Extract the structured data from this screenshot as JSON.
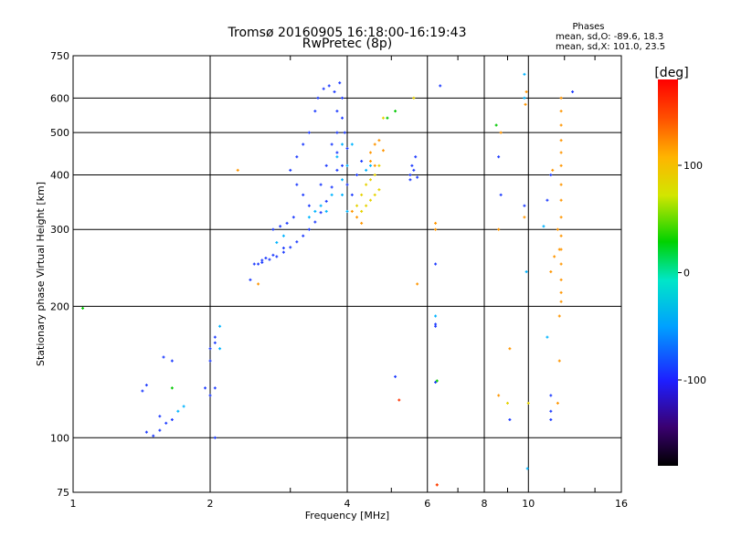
{
  "chart_data": {
    "type": "scatter",
    "title": "Tromsø 20160905 16:18:00-16:19:43",
    "subtitle": "RwPretec (8p)",
    "xlabel": "Frequency [MHz]",
    "ylabel": "Stationary phase Virtual Height [km]",
    "xscale": "log",
    "yscale": "log",
    "xlim": [
      1,
      16
    ],
    "ylim": [
      75,
      750
    ],
    "x_ticks": [
      1,
      2,
      4,
      6,
      8,
      10,
      16
    ],
    "x_tick_labels": [
      "1",
      "2",
      "4",
      "6",
      "8",
      "10",
      "16"
    ],
    "y_ticks": [
      75,
      100,
      200,
      300,
      400,
      500,
      600,
      750
    ],
    "y_tick_labels": [
      "75",
      "100",
      "200",
      "300",
      "400",
      "500",
      "600",
      "750"
    ],
    "grid": true,
    "phases_title": "Phases",
    "stats": [
      "mean, sd,O: -89.6, 18.3",
      "mean, sd,X: 101.0, 23.5"
    ],
    "colorbar": {
      "label": "[deg]",
      "min": -180,
      "max": 180,
      "ticks": [
        100,
        0,
        -100
      ],
      "tick_labels": [
        "100",
        "0",
        "-100"
      ]
    },
    "series": [
      {
        "color": "#1e3cff",
        "phase": -100,
        "points": [
          [
            2.55,
            250
          ],
          [
            2.6,
            252
          ],
          [
            2.7,
            256
          ],
          [
            2.8,
            260
          ],
          [
            2.9,
            266
          ],
          [
            3.0,
            273
          ],
          [
            3.1,
            281
          ],
          [
            3.2,
            290
          ],
          [
            3.3,
            300
          ],
          [
            3.4,
            312
          ],
          [
            3.5,
            328
          ],
          [
            3.6,
            348
          ],
          [
            3.7,
            375
          ],
          [
            3.8,
            410
          ],
          [
            3.8,
            450
          ],
          [
            3.8,
            500
          ],
          [
            3.8,
            560
          ],
          [
            3.75,
            620
          ],
          [
            3.65,
            640
          ],
          [
            3.55,
            630
          ],
          [
            3.45,
            600
          ],
          [
            3.4,
            560
          ],
          [
            3.3,
            500
          ],
          [
            3.2,
            470
          ],
          [
            3.1,
            440
          ],
          [
            3.0,
            410
          ],
          [
            3.1,
            380
          ],
          [
            3.2,
            360
          ],
          [
            3.3,
            340
          ],
          [
            3.5,
            380
          ],
          [
            3.6,
            420
          ],
          [
            3.7,
            470
          ],
          [
            3.9,
            420
          ],
          [
            4.0,
            380
          ],
          [
            4.1,
            360
          ],
          [
            4.2,
            400
          ],
          [
            4.3,
            430
          ],
          [
            4.0,
            460
          ],
          [
            3.95,
            500
          ],
          [
            3.9,
            540
          ],
          [
            3.9,
            600
          ],
          [
            3.85,
            650
          ],
          [
            2.75,
            300
          ],
          [
            2.85,
            305
          ],
          [
            2.95,
            310
          ],
          [
            3.05,
            320
          ],
          [
            2.6,
            255
          ],
          [
            2.65,
            258
          ],
          [
            2.75,
            262
          ],
          [
            2.9,
            272
          ],
          [
            2.45,
            230
          ],
          [
            2.5,
            250
          ],
          [
            1.45,
            103
          ],
          [
            1.5,
            101
          ],
          [
            1.55,
            104
          ],
          [
            1.6,
            108
          ],
          [
            1.65,
            110
          ],
          [
            1.55,
            112
          ],
          [
            1.42,
            128
          ],
          [
            1.45,
            132
          ],
          [
            1.58,
            153
          ],
          [
            1.65,
            150
          ],
          [
            2.0,
            160
          ],
          [
            2.05,
            165
          ],
          [
            2.05,
            170
          ],
          [
            2.0,
            150
          ],
          [
            2.05,
            130
          ],
          [
            1.95,
            130
          ],
          [
            2.0,
            125
          ],
          [
            5.5,
            400
          ],
          [
            5.6,
            410
          ],
          [
            5.7,
            395
          ],
          [
            5.55,
            420
          ],
          [
            5.65,
            440
          ],
          [
            5.5,
            390
          ],
          [
            6.25,
            250
          ],
          [
            6.25,
            182
          ],
          [
            6.25,
            180
          ],
          [
            6.25,
            134
          ],
          [
            8.6,
            440
          ],
          [
            8.7,
            360
          ],
          [
            9.8,
            340
          ],
          [
            11.0,
            350
          ],
          [
            11.2,
            400
          ],
          [
            11.2,
            125
          ],
          [
            11.2,
            115
          ],
          [
            11.2,
            110
          ],
          [
            12.5,
            620
          ],
          [
            9.1,
            110
          ],
          [
            5.1,
            138
          ],
          [
            2.05,
            100
          ],
          [
            6.4,
            640
          ]
        ]
      },
      {
        "color": "#00b4ff",
        "phase": -60,
        "points": [
          [
            3.6,
            330
          ],
          [
            3.7,
            360
          ],
          [
            3.9,
            360
          ],
          [
            4.0,
            330
          ],
          [
            3.9,
            390
          ],
          [
            4.0,
            420
          ],
          [
            4.1,
            470
          ],
          [
            3.9,
            470
          ],
          [
            3.8,
            440
          ],
          [
            2.8,
            280
          ],
          [
            2.9,
            290
          ],
          [
            3.3,
            320
          ],
          [
            3.4,
            330
          ],
          [
            3.5,
            340
          ],
          [
            1.7,
            115
          ],
          [
            1.75,
            118
          ],
          [
            2.1,
            180
          ],
          [
            2.1,
            160
          ],
          [
            9.8,
            680
          ],
          [
            9.8,
            600
          ],
          [
            10.8,
            305
          ],
          [
            9.9,
            240
          ],
          [
            9.95,
            85
          ],
          [
            11.0,
            170
          ],
          [
            6.25,
            190
          ],
          [
            4.4,
            410
          ],
          [
            4.5,
            420
          ]
        ]
      },
      {
        "color": "#00c800",
        "phase": 0,
        "points": [
          [
            1.05,
            198
          ],
          [
            1.65,
            130
          ],
          [
            4.9,
            540
          ],
          [
            5.1,
            560
          ],
          [
            8.5,
            520
          ],
          [
            6.3,
            135
          ]
        ]
      },
      {
        "color": "#e6d200",
        "phase": 100,
        "points": [
          [
            4.3,
            330
          ],
          [
            4.4,
            340
          ],
          [
            4.5,
            350
          ],
          [
            4.6,
            360
          ],
          [
            4.7,
            370
          ],
          [
            4.5,
            390
          ],
          [
            4.6,
            400
          ],
          [
            4.7,
            420
          ],
          [
            4.4,
            380
          ],
          [
            4.3,
            360
          ],
          [
            4.2,
            340
          ],
          [
            5.6,
            600
          ],
          [
            4.8,
            540
          ],
          [
            10.0,
            120
          ],
          [
            9.0,
            120
          ]
        ]
      },
      {
        "color": "#ff9600",
        "phase": 140,
        "points": [
          [
            4.5,
            450
          ],
          [
            4.6,
            470
          ],
          [
            4.7,
            480
          ],
          [
            4.8,
            455
          ],
          [
            4.5,
            430
          ],
          [
            4.6,
            420
          ],
          [
            4.1,
            330
          ],
          [
            4.2,
            320
          ],
          [
            4.3,
            310
          ],
          [
            6.25,
            310
          ],
          [
            6.25,
            300
          ],
          [
            11.8,
            600
          ],
          [
            11.8,
            560
          ],
          [
            11.8,
            520
          ],
          [
            11.8,
            480
          ],
          [
            11.8,
            450
          ],
          [
            11.8,
            420
          ],
          [
            11.8,
            380
          ],
          [
            11.8,
            350
          ],
          [
            11.8,
            320
          ],
          [
            11.8,
            290
          ],
          [
            11.8,
            270
          ],
          [
            11.8,
            250
          ],
          [
            11.8,
            230
          ],
          [
            11.8,
            215
          ],
          [
            11.8,
            205
          ],
          [
            11.7,
            270
          ],
          [
            11.6,
            300
          ],
          [
            11.7,
            190
          ],
          [
            11.7,
            150
          ],
          [
            11.6,
            120
          ],
          [
            9.1,
            160
          ],
          [
            8.6,
            125
          ],
          [
            8.6,
            300
          ],
          [
            8.7,
            500
          ],
          [
            2.3,
            410
          ],
          [
            2.55,
            225
          ],
          [
            5.7,
            225
          ],
          [
            9.9,
            620
          ],
          [
            9.85,
            580
          ],
          [
            9.8,
            320
          ],
          [
            11.4,
            260
          ],
          [
            11.3,
            410
          ],
          [
            11.2,
            240
          ],
          [
            6.3,
            78
          ]
        ]
      },
      {
        "color": "#ff3200",
        "phase": 170,
        "points": [
          [
            5.2,
            122
          ],
          [
            6.3,
            78
          ]
        ]
      }
    ]
  }
}
